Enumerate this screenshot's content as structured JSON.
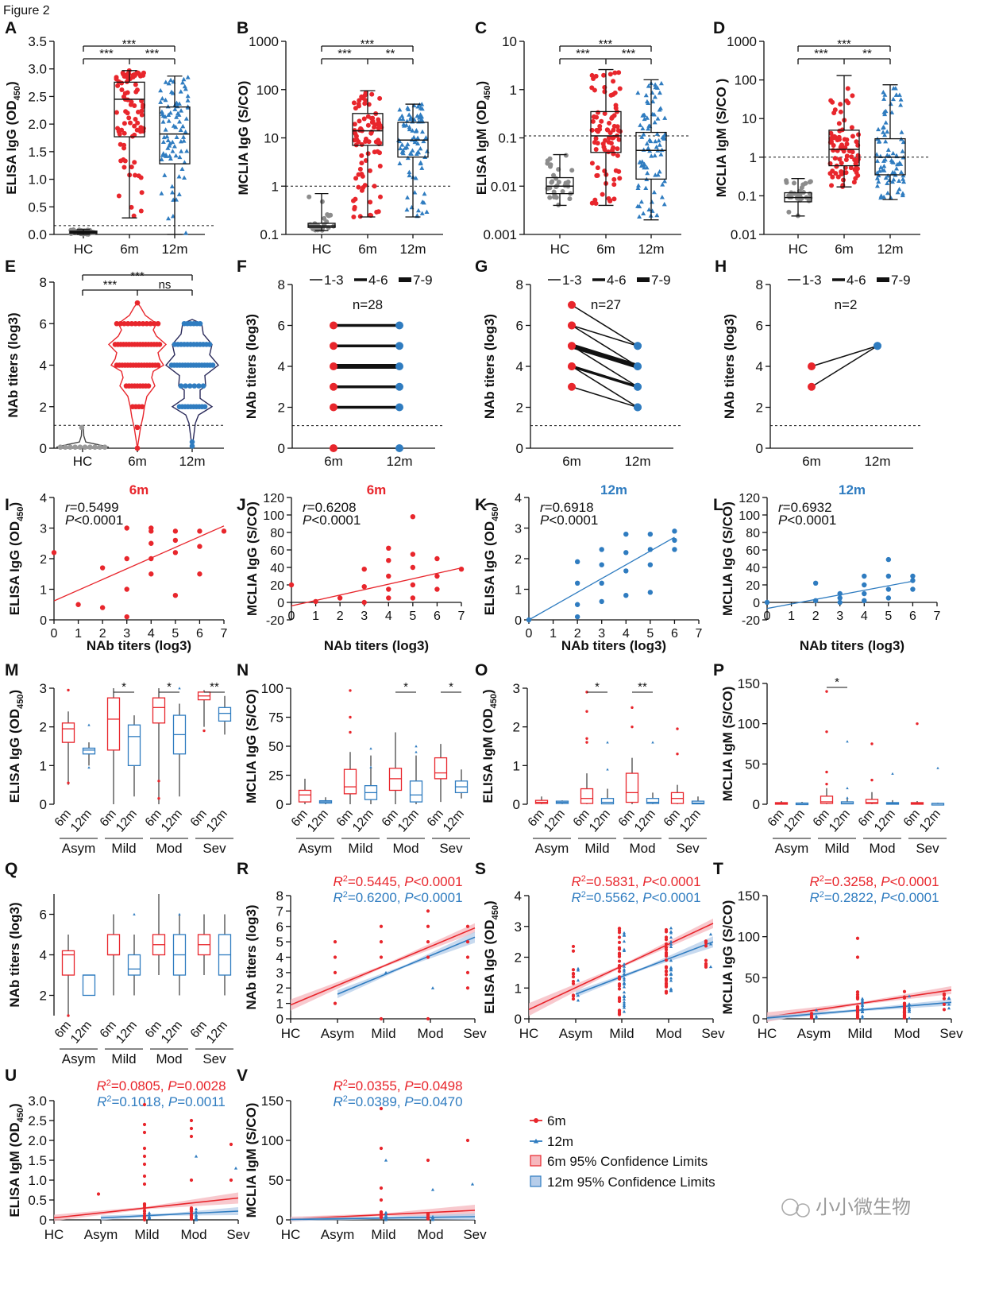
{
  "figure_title": "Figure 2",
  "colors": {
    "red": "#e8262c",
    "blue": "#2f7cc0",
    "gray": "#8c8c8c",
    "pink_ci": "#f6b7bd",
    "blue_ci": "#b6cdea"
  },
  "legend": {
    "items": [
      "6m",
      "12m",
      "6m 95% Confidence Limits",
      "12m 95% Confidence Limits"
    ]
  },
  "watermark": "小小微生物",
  "chart_data": [
    {
      "panel": "A",
      "type": "box",
      "ylabel": "ELISA IgG (OD450)",
      "ylim": [
        0,
        3.5
      ],
      "yticks": [
        "0.0",
        "0.5",
        "1.0",
        "1.5",
        "2.0",
        "2.5",
        "3.0",
        "3.5"
      ],
      "categories": [
        "HC",
        "6m",
        "12m"
      ],
      "cutoff": 0.16,
      "boxes": [
        {
          "min": 0,
          "q1": 0.02,
          "median": 0.04,
          "q3": 0.06,
          "max": 0.09
        },
        {
          "min": 0.3,
          "q1": 1.77,
          "median": 2.45,
          "q3": 2.76,
          "max": 2.97
        },
        {
          "min": 0,
          "q1": 1.28,
          "median": 1.82,
          "q3": 2.31,
          "max": 2.87
        }
      ],
      "significance": [
        {
          "pair": [
            "HC",
            "12m"
          ],
          "label": "***"
        },
        {
          "pair": [
            "HC",
            "6m"
          ],
          "label": "***"
        },
        {
          "pair": [
            "6m",
            "12m"
          ],
          "label": "***"
        }
      ]
    },
    {
      "panel": "B",
      "type": "box",
      "scale": "log",
      "ylabel": "MCLIA IgG (S/CO)",
      "ylim": [
        0.1,
        1000
      ],
      "yticks": [
        "0.1",
        "1",
        "10",
        "100",
        "1000"
      ],
      "categories": [
        "HC",
        "6m",
        "12m"
      ],
      "cutoff": 1,
      "boxes": [
        {
          "min": 0.12,
          "q1": 0.14,
          "median": 0.15,
          "q3": 0.17,
          "max": 0.7
        },
        {
          "min": 0.23,
          "q1": 7,
          "median": 14,
          "q3": 32,
          "max": 95
        },
        {
          "min": 0.23,
          "q1": 4,
          "median": 9,
          "q3": 21,
          "max": 50
        }
      ],
      "significance": [
        {
          "pair": [
            "HC",
            "12m"
          ],
          "label": "***"
        },
        {
          "pair": [
            "HC",
            "6m"
          ],
          "label": "***"
        },
        {
          "pair": [
            "6m",
            "12m"
          ],
          "label": "**"
        }
      ]
    },
    {
      "panel": "C",
      "type": "box",
      "scale": "log",
      "ylabel": "ELISA IgM (OD450)",
      "ylim": [
        0.001,
        10
      ],
      "yticks": [
        "0.001",
        "0.01",
        "0.1",
        "1",
        "10"
      ],
      "categories": [
        "HC",
        "6m",
        "12m"
      ],
      "cutoff": 0.11,
      "boxes": [
        {
          "min": 0.004,
          "q1": 0.007,
          "median": 0.01,
          "q3": 0.015,
          "max": 0.045
        },
        {
          "min": 0.004,
          "q1": 0.05,
          "median": 0.11,
          "q3": 0.35,
          "max": 2.6
        },
        {
          "min": 0.002,
          "q1": 0.014,
          "median": 0.055,
          "q3": 0.13,
          "max": 1.6
        }
      ],
      "significance": [
        {
          "pair": [
            "HC",
            "12m"
          ],
          "label": "***"
        },
        {
          "pair": [
            "HC",
            "6m"
          ],
          "label": "***"
        },
        {
          "pair": [
            "6m",
            "12m"
          ],
          "label": "***"
        }
      ]
    },
    {
      "panel": "D",
      "type": "box",
      "scale": "log",
      "ylabel": "MCLIA IgM (S/CO )",
      "ylim": [
        0.01,
        1000
      ],
      "yticks": [
        "0.01",
        "0.1",
        "1",
        "10",
        "100",
        "1000"
      ],
      "categories": [
        "HC",
        "6m",
        "12m"
      ],
      "cutoff": 1,
      "boxes": [
        {
          "min": 0.03,
          "q1": 0.07,
          "median": 0.09,
          "q3": 0.12,
          "max": 0.28
        },
        {
          "min": 0.17,
          "q1": 0.6,
          "median": 1.6,
          "q3": 5,
          "max": 130
        },
        {
          "min": 0.08,
          "q1": 0.35,
          "median": 1,
          "q3": 3,
          "max": 75
        }
      ],
      "significance": [
        {
          "pair": [
            "HC",
            "12m"
          ],
          "label": "***"
        },
        {
          "pair": [
            "HC",
            "6m"
          ],
          "label": "***"
        },
        {
          "pair": [
            "6m",
            "12m"
          ],
          "label": "**"
        }
      ]
    },
    {
      "panel": "E",
      "type": "violin",
      "ylabel": "NAb titers (log3)",
      "ylim": [
        0,
        8
      ],
      "yticks": [
        "0",
        "2",
        "4",
        "6",
        "8"
      ],
      "categories": [
        "HC",
        "6m",
        "12m"
      ],
      "cutoff": 1.1,
      "significance": [
        {
          "pair": [
            "HC",
            "12m"
          ],
          "label": "***"
        },
        {
          "pair": [
            "HC",
            "6m"
          ],
          "label": "***"
        },
        {
          "pair": [
            "6m",
            "12m"
          ],
          "label": "ns"
        }
      ]
    },
    {
      "panel": "F",
      "type": "line",
      "ylabel": "NAb titers (log3)",
      "ylim": [
        0,
        8
      ],
      "yticks": [
        "0",
        "2",
        "4",
        "6",
        "8"
      ],
      "categories": [
        "6m",
        "12m"
      ],
      "n": "n=28",
      "legend": [
        "1-3",
        "4-6",
        "7-9"
      ],
      "cutoff": 1.1,
      "pairs": [
        {
          "from": 0,
          "to": 0,
          "count": 1
        },
        {
          "from": 2,
          "to": 2,
          "count": 4
        },
        {
          "from": 3,
          "to": 3,
          "count": 5
        },
        {
          "from": 4,
          "to": 4,
          "count": 8
        },
        {
          "from": 5,
          "to": 5,
          "count": 6
        },
        {
          "from": 6,
          "to": 6,
          "count": 4
        }
      ]
    },
    {
      "panel": "G",
      "type": "line",
      "ylabel": "NAb titers (log3)",
      "ylim": [
        0,
        8
      ],
      "yticks": [
        "0",
        "2",
        "4",
        "6",
        "8"
      ],
      "categories": [
        "6m",
        "12m"
      ],
      "n": "n=27",
      "legend": [
        "1-3",
        "4-6",
        "7-9"
      ],
      "cutoff": 1.1,
      "pairs": [
        {
          "from": 7,
          "to": 5,
          "count": 1
        },
        {
          "from": 6,
          "to": 5,
          "count": 2
        },
        {
          "from": 6,
          "to": 4,
          "count": 2
        },
        {
          "from": 5,
          "to": 4,
          "count": 8
        },
        {
          "from": 5,
          "to": 3,
          "count": 3
        },
        {
          "from": 4,
          "to": 3,
          "count": 4
        },
        {
          "from": 4,
          "to": 2,
          "count": 2
        },
        {
          "from": 3,
          "to": 2,
          "count": 2
        }
      ]
    },
    {
      "panel": "H",
      "type": "line",
      "ylabel": "NAb titers (log3)",
      "ylim": [
        0,
        8
      ],
      "yticks": [
        "0",
        "2",
        "4",
        "6",
        "8"
      ],
      "categories": [
        "6m",
        "12m"
      ],
      "n": "n=2",
      "legend": [
        "1-3",
        "4-6",
        "7-9"
      ],
      "cutoff": 1.1,
      "pairs": [
        {
          "from": 4,
          "to": 5,
          "count": 1
        },
        {
          "from": 3,
          "to": 5,
          "count": 1
        }
      ]
    },
    {
      "panel": "I",
      "type": "scatter",
      "title": "6m",
      "xlabel": "NAb titers (log3)",
      "ylabel": "ELISA IgG (OD450)",
      "xlim": [
        0,
        7
      ],
      "ylim": [
        0,
        4
      ],
      "xticks": [
        "0",
        "1",
        "2",
        "3",
        "4",
        "5",
        "6",
        "7"
      ],
      "yticks": [
        "0",
        "1",
        "2",
        "3",
        "4"
      ],
      "r": "=0.5499",
      "p": "<0.0001",
      "fit": {
        "intercept": 0.62,
        "slope": 0.35
      },
      "x": [
        0,
        1,
        2,
        2,
        3,
        3,
        3,
        3,
        4,
        4,
        4,
        4,
        4,
        5,
        5,
        5,
        5,
        6,
        6,
        6,
        7
      ],
      "y": [
        2.2,
        0.5,
        0.4,
        1.7,
        0.1,
        1.0,
        2.0,
        3.0,
        1.5,
        2.0,
        2.5,
        2.9,
        3.0,
        0.8,
        2.2,
        2.6,
        2.9,
        1.5,
        2.4,
        2.9,
        2.9
      ]
    },
    {
      "panel": "J",
      "type": "scatter",
      "title": "6m",
      "xlabel": "NAb titers (log3)",
      "ylabel": "MCLIA IgG (S/CO)",
      "xlim": [
        0,
        7
      ],
      "ylim": [
        -20,
        120
      ],
      "xticks": [
        "0",
        "1",
        "2",
        "3",
        "4",
        "5",
        "6",
        "7"
      ],
      "yticks": [
        "-20",
        "0",
        "20",
        "40",
        "60",
        "80",
        "100",
        "120"
      ],
      "r": "=0.6208",
      "p": "<0.0001",
      "fit": {
        "intercept": -4,
        "slope": 6.2
      },
      "x": [
        0,
        1,
        2,
        3,
        3,
        3,
        4,
        4,
        4,
        4,
        4,
        5,
        5,
        5,
        5,
        5,
        6,
        6,
        6,
        7
      ],
      "y": [
        20,
        1,
        5,
        0,
        18,
        38,
        5,
        15,
        30,
        48,
        62,
        5,
        20,
        40,
        55,
        98,
        15,
        30,
        50,
        38
      ]
    },
    {
      "panel": "K",
      "type": "scatter",
      "title": "12m",
      "xlabel": "NAb titers (log3)",
      "ylabel": "ELISA IgG (OD450)",
      "xlim": [
        0,
        7
      ],
      "ylim": [
        0,
        4
      ],
      "xticks": [
        "0",
        "1",
        "2",
        "3",
        "4",
        "5",
        "6",
        "7"
      ],
      "yticks": [
        "0",
        "1",
        "2",
        "3",
        "4"
      ],
      "r": "=0.6918",
      "p": "<0.0001",
      "fit": {
        "intercept": 0,
        "slope": 0.45
      },
      "x": [
        0,
        2,
        2,
        2,
        2,
        3,
        3,
        3,
        3,
        4,
        4,
        4,
        4,
        5,
        5,
        5,
        5,
        6,
        6,
        6
      ],
      "y": [
        0,
        0.1,
        0.5,
        1.2,
        1.9,
        0.6,
        1.2,
        1.8,
        2.3,
        0.8,
        1.6,
        2.2,
        2.8,
        0.9,
        1.8,
        2.3,
        2.8,
        2.3,
        2.6,
        2.9
      ]
    },
    {
      "panel": "L",
      "type": "scatter",
      "title": "12m",
      "xlabel": "NAb titers (log3)",
      "ylabel": "MCLIA IgG (S/CO)",
      "xlim": [
        0,
        7
      ],
      "ylim": [
        -20,
        120
      ],
      "xticks": [
        "0",
        "1",
        "2",
        "3",
        "4",
        "5",
        "6",
        "7"
      ],
      "yticks": [
        "-20",
        "0",
        "20",
        "40",
        "60",
        "80",
        "100",
        "120"
      ],
      "r": "=0.6932",
      "p": "<0.0001",
      "fit": {
        "intercept": -7,
        "slope": 5.2
      },
      "x": [
        0,
        2,
        2,
        3,
        3,
        3,
        4,
        4,
        4,
        4,
        5,
        5,
        5,
        5,
        6,
        6,
        6
      ],
      "y": [
        0,
        2,
        22,
        0,
        5,
        10,
        2,
        10,
        20,
        30,
        5,
        15,
        30,
        49,
        15,
        25,
        30
      ]
    },
    {
      "panel": "M",
      "type": "grouped-box",
      "ylabel": "ELISA IgG (OD450)",
      "ylim": [
        0,
        3
      ],
      "yticks": [
        "0",
        "1",
        "2",
        "3"
      ],
      "groups": [
        "Asym",
        "Mild",
        "Mod",
        "Sev"
      ],
      "sublabels": [
        "6m",
        "12m"
      ],
      "significance": [
        {
          "group": "Mild",
          "label": "*"
        },
        {
          "group": "Mod",
          "label": "*"
        },
        {
          "group": "Sev",
          "label": "**"
        }
      ]
    },
    {
      "panel": "N",
      "type": "grouped-box",
      "ylabel": "MCLIA IgG (S/CO)",
      "ylim": [
        0,
        100
      ],
      "yticks": [
        "0",
        "25",
        "50",
        "75",
        "100"
      ],
      "groups": [
        "Asym",
        "Mild",
        "Mod",
        "Sev"
      ],
      "sublabels": [
        "6m",
        "12m"
      ],
      "significance": [
        {
          "group": "Mod",
          "label": "*"
        },
        {
          "group": "Sev",
          "label": "*"
        }
      ]
    },
    {
      "panel": "O",
      "type": "grouped-box",
      "ylabel": "ELISA IgM (OD450)",
      "ylim": [
        0,
        3
      ],
      "yticks": [
        "0",
        "1",
        "2",
        "3"
      ],
      "groups": [
        "Asym",
        "Mild",
        "Mod",
        "Sev"
      ],
      "sublabels": [
        "6m",
        "12m"
      ],
      "significance": [
        {
          "group": "Mild",
          "label": "*"
        },
        {
          "group": "Mod",
          "label": "**"
        }
      ]
    },
    {
      "panel": "P",
      "type": "grouped-box",
      "ylabel": "MCLIA IgM (S/CO)",
      "ylim": [
        0,
        150
      ],
      "yticks": [
        "0",
        "50",
        "100",
        "150"
      ],
      "groups": [
        "Asym",
        "Mild",
        "Mod",
        "Sev"
      ],
      "sublabels": [
        "6m",
        "12m"
      ],
      "significance": [
        {
          "group": "Mild",
          "label": "*"
        }
      ]
    },
    {
      "panel": "Q",
      "type": "grouped-box",
      "ylabel": "NAb titers (log3)",
      "ylim": [
        1,
        7
      ],
      "yticks": [
        "2",
        "4",
        "6"
      ],
      "groups": [
        "Asym",
        "Mild",
        "Mod",
        "Sev"
      ],
      "sublabels": [
        "6m",
        "12m"
      ]
    },
    {
      "panel": "R",
      "type": "regression",
      "ylabel": "NAb titers (log3)",
      "ylim": [
        0,
        8
      ],
      "yticks": [
        "0",
        "1",
        "2",
        "3",
        "4",
        "5",
        "6",
        "7",
        "8"
      ],
      "categories": [
        "HC",
        "Asym",
        "Mild",
        "Mod",
        "Sev"
      ],
      "stats": [
        {
          "r2": "=0.5445, ",
          "p": "<0.0001"
        },
        {
          "r2": "=0.6200, ",
          "p": "<0.0001"
        }
      ]
    },
    {
      "panel": "S",
      "type": "regression",
      "ylabel": "ELISA IgG (OD450)",
      "ylim": [
        0,
        4
      ],
      "yticks": [
        "0",
        "1",
        "2",
        "3",
        "4"
      ],
      "categories": [
        "HC",
        "Asym",
        "Mild",
        "Mod",
        "Sev"
      ],
      "stats": [
        {
          "r2": "=0.5831, ",
          "p": "<0.0001"
        },
        {
          "r2": "=0.5562, ",
          "p": "<0.0001"
        }
      ]
    },
    {
      "panel": "T",
      "type": "regression",
      "ylabel": "MCLIA IgG (S/CO)",
      "ylim": [
        0,
        150
      ],
      "yticks": [
        "0",
        "50",
        "100",
        "150"
      ],
      "categories": [
        "HC",
        "Asym",
        "Mild",
        "Mod",
        "Sev"
      ],
      "stats": [
        {
          "r2": "=0.3258, ",
          "p": "<0.0001"
        },
        {
          "r2": "=0.2822, ",
          "p": "<0.0001"
        }
      ]
    },
    {
      "panel": "U",
      "type": "regression",
      "ylabel": "ELISA IgM (OD450)",
      "ylim": [
        0,
        3
      ],
      "yticks": [
        "0",
        "0.5",
        "1.0",
        "1.5",
        "2.0",
        "2.5",
        "3.0"
      ],
      "categories": [
        "HC",
        "Asym",
        "Mild",
        "Mod",
        "Sev"
      ],
      "stats": [
        {
          "r2": "=0.0805, ",
          "p": "=0.0028"
        },
        {
          "r2": "=0.1018, ",
          "p": "=0.0011"
        }
      ]
    },
    {
      "panel": "V",
      "type": "regression",
      "ylabel": "MCLIA IgM (S/CO)",
      "ylim": [
        0,
        150
      ],
      "yticks": [
        "0",
        "50",
        "100",
        "150"
      ],
      "categories": [
        "HC",
        "Asym",
        "Mild",
        "Mod",
        "Sev"
      ],
      "stats": [
        {
          "r2": "=0.0355, ",
          "p": "=0.0498"
        },
        {
          "r2": "=0.0389, ",
          "p": "=0.0470"
        }
      ]
    }
  ]
}
